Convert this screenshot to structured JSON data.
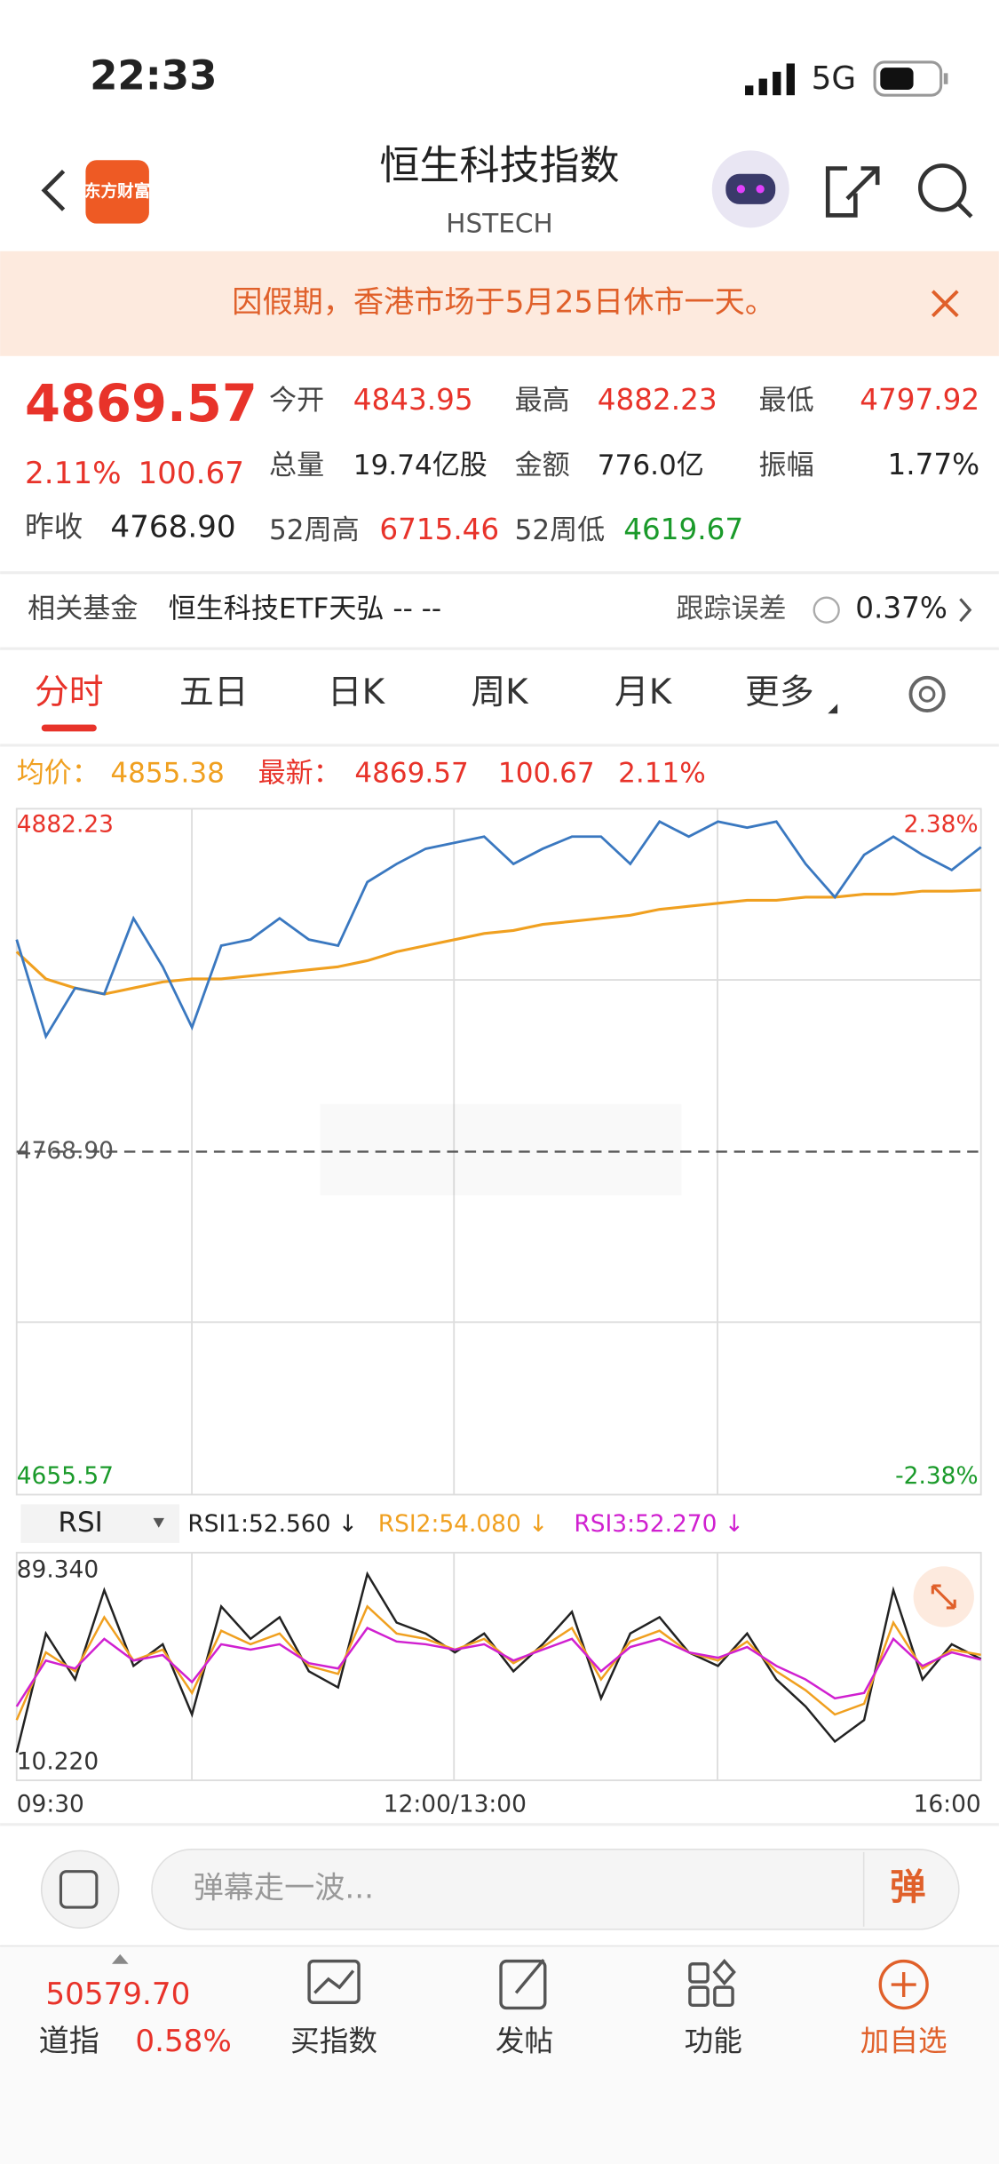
{
  "status_bar": {
    "time": "22:33",
    "network": "5G"
  },
  "header": {
    "logo": "东方财富",
    "title": "恒生科技指数",
    "subtitle": "HSTECH"
  },
  "notice": "因假期，香港市场于5月25日休市一天。",
  "quote": {
    "price": "4869.57",
    "change_pct": "2.11%",
    "change": "100.67",
    "prev_close_label": "昨收",
    "prev_close": "4768.90",
    "fields": [
      [
        "今开",
        "4843.95"
      ],
      [
        "最高",
        "4882.23"
      ],
      [
        "最低",
        "4797.92"
      ],
      [
        "总量",
        "19.74亿股"
      ],
      [
        "金额",
        "776.0亿"
      ],
      [
        "振幅",
        "1.77%"
      ],
      [
        "52周高",
        "6715.46"
      ],
      [
        "52周低",
        "4619.67"
      ]
    ]
  },
  "fund": {
    "label": "相关基金",
    "name": "恒生科技ETF天弘 -- --",
    "error_label": "跟踪误差",
    "error": "0.37%"
  },
  "tabs": [
    "分时",
    "五日",
    "日K",
    "周K",
    "月K",
    "更多"
  ],
  "info_line": {
    "avg_label": "均价：",
    "avg": "4855.38",
    "latest_label": "最新：",
    "latest": "4869.57",
    "change": "100.67",
    "change_pct": "2.11%"
  },
  "chart_data": [
    {
      "type": "line",
      "categories": [
        "09:30",
        null,
        null,
        null,
        null,
        null,
        null,
        null,
        null,
        null,
        null,
        null,
        null,
        null,
        null,
        "12:00/13:00",
        null,
        null,
        null,
        null,
        null,
        null,
        null,
        null,
        null,
        null,
        null,
        null,
        null,
        null,
        null,
        null,
        null,
        "16:00"
      ],
      "series": [
        {
          "color": "#3a78c0",
          "values": [
            4839,
            4807,
            4823,
            4821,
            4846,
            4830,
            4810,
            4837,
            4839,
            4846,
            4839,
            4837,
            4858,
            4864,
            4869,
            4871,
            4873,
            4864,
            4869,
            4873,
            4873,
            4864,
            4878,
            4873,
            4878,
            4876,
            4878,
            4864,
            4853,
            4867,
            4873,
            4867,
            4862,
            4869.57
          ]
        },
        {
          "color": "#f0a020",
          "values": [
            4835,
            4826,
            4823,
            4821,
            4823,
            4825,
            4826,
            4826,
            4827,
            4828,
            4829,
            4830,
            4832,
            4835,
            4837,
            4839,
            4841,
            4842,
            4844,
            4845,
            4846,
            4847,
            4849,
            4850,
            4851,
            4852,
            4852,
            4853,
            4853,
            4854,
            4854,
            4855,
            4855,
            4855.38
          ]
        }
      ],
      "ylim": [
        4655.57,
        4882.23
      ],
      "yticks": [
        4882.23,
        {
          "value": 4768.9,
          "label": "4768.90"
        },
        4655.57
      ],
      "y2lim": [
        -2.38,
        2.38
      ],
      "y2ticks": [
        {
          "value": 2.38,
          "label": "2.38%"
        },
        {
          "value": -2.38,
          "label": "-2.38%"
        }
      ]
    },
    {
      "type": "line",
      "indicator": "RSI",
      "categories": [
        "09:30",
        null,
        null,
        null,
        null,
        null,
        null,
        null,
        null,
        null,
        null,
        null,
        null,
        null,
        null,
        "12:00/13:00",
        null,
        null,
        null,
        null,
        null,
        null,
        null,
        null,
        null,
        null,
        null,
        null,
        null,
        null,
        null,
        null,
        null,
        "16:00"
      ],
      "series": [
        {
          "name": "RSI1:52.560 ↓",
          "color": "#222222",
          "values": [
            18,
            62,
            45,
            78,
            50,
            58,
            32,
            72,
            60,
            68,
            48,
            42,
            84,
            66,
            62,
            55,
            62,
            48,
            58,
            70,
            38,
            62,
            68,
            55,
            50,
            62,
            45,
            35,
            22,
            30,
            78,
            45,
            58,
            52.56
          ]
        },
        {
          "name": "RSI2:54.080 ↓",
          "color": "#f0a020",
          "values": [
            30,
            55,
            48,
            68,
            52,
            56,
            40,
            63,
            58,
            62,
            50,
            47,
            72,
            62,
            60,
            56,
            60,
            51,
            57,
            64,
            45,
            59,
            63,
            55,
            52,
            59,
            48,
            41,
            32,
            36,
            66,
            49,
            56,
            54.08
          ]
        },
        {
          "name": "RSI3:52.270 ↓",
          "color": "#d020d0",
          "values": [
            35,
            52,
            49,
            60,
            52,
            54,
            44,
            58,
            56,
            58,
            51,
            49,
            64,
            59,
            58,
            56,
            58,
            52,
            56,
            60,
            48,
            57,
            60,
            55,
            53,
            57,
            50,
            45,
            38,
            40,
            60,
            50,
            55,
            52.27
          ]
        }
      ],
      "ylim": [
        10.22,
        89.34
      ],
      "yticks": [
        {
          "value": 89.34,
          "label": "89.340"
        },
        {
          "value": 10.22,
          "label": "10.220"
        }
      ]
    }
  ],
  "comment_placeholder": "弹幕走一波...",
  "comment_button": "弹",
  "bottom_bar": {
    "index_value": "50579.70",
    "index_name": "道指",
    "index_change": "0.58%",
    "items": [
      "买指数",
      "发帖",
      "功能",
      "加自选"
    ]
  }
}
